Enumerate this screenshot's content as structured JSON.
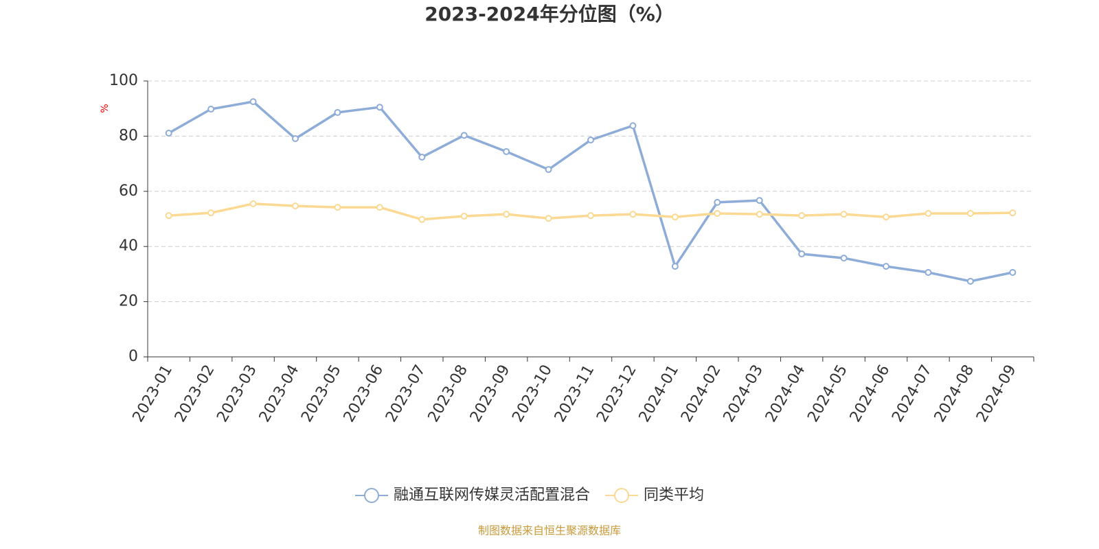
{
  "chart_data": {
    "type": "line",
    "title": "2023-2024年分位图（%）",
    "y_label": "%",
    "categories": [
      "2023-01",
      "2023-02",
      "2023-03",
      "2023-04",
      "2023-05",
      "2023-06",
      "2023-07",
      "2023-08",
      "2023-09",
      "2023-10",
      "2023-11",
      "2023-12",
      "2024-01",
      "2024-02",
      "2024-03",
      "2024-04",
      "2024-05",
      "2024-06",
      "2024-07",
      "2024-08",
      "2024-09"
    ],
    "series": [
      {
        "name": "融通互联网传媒灵活配置混合",
        "color": "#8eacd8",
        "values": [
          81.1,
          89.8,
          92.5,
          79.1,
          88.6,
          90.5,
          72.4,
          80.3,
          74.4,
          67.9,
          78.6,
          83.8,
          32.8,
          56.0,
          56.7,
          37.3,
          35.8,
          32.8,
          30.6,
          27.4,
          30.6
        ]
      },
      {
        "name": "同类平均",
        "color": "#fcd992",
        "values": [
          51.2,
          52.2,
          55.5,
          54.7,
          54.2,
          54.2,
          49.8,
          51.0,
          51.7,
          50.2,
          51.2,
          51.7,
          50.7,
          52.0,
          51.7,
          51.2,
          51.7,
          50.7,
          52.0,
          52.0,
          52.2
        ]
      }
    ],
    "ylim": [
      0,
      100
    ],
    "yticks": [
      0,
      20,
      40,
      60,
      80,
      100
    ],
    "grid": true,
    "source": "制图数据来自恒生聚源数据库"
  }
}
